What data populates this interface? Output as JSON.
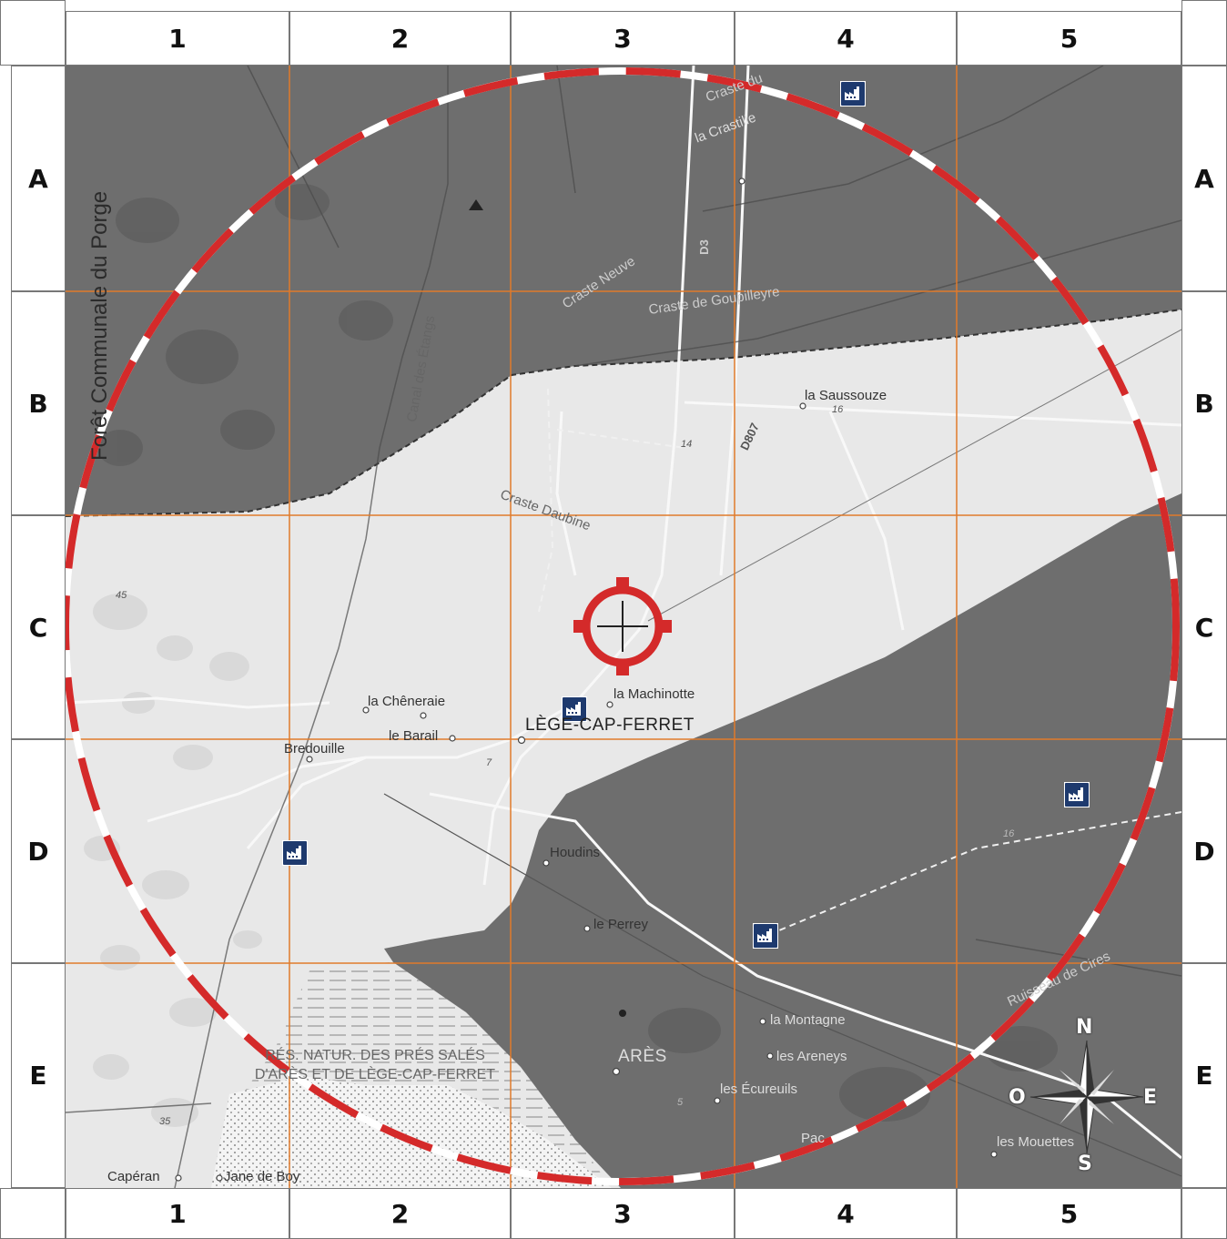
{
  "grid": {
    "columns": [
      "1",
      "2",
      "3",
      "4",
      "5"
    ],
    "rows": [
      "A",
      "B",
      "C",
      "D",
      "E"
    ]
  },
  "places": {
    "lege_cap_ferret": "LÈGE-CAP-FERRET",
    "la_machinotte": "la Machinotte",
    "la_cheneraie": "la Chêneraie",
    "le_barail": "le Barail",
    "bredouille": "Bredouille",
    "houdins": "Houdins",
    "le_perrey": "le Perrey",
    "ares": "ARÈS",
    "la_montagne": "la Montagne",
    "les_areneys": "les Areneys",
    "les_ecureuils": "les Écureuils",
    "les_mouettes": "les Mouettes",
    "pac": "Pac",
    "la_saussouze": "la Saussouze",
    "la_crastille": "la Crastille",
    "craste_du": "Craste du",
    "craste_neuve": "Craste Neuve",
    "craste_de_goupilleyre": "Craste de Goupilleyre",
    "craste_daubine": "Craste Daubine",
    "canal_des_etangs": "Canal des Étangs",
    "foret_communale": "Forêt Communale du Porge",
    "road_d3": "D3",
    "road_d807": "D807",
    "ruisseau_de_cires": "Ruisseau de Cires",
    "caperan": "Capéran",
    "jane_de_boy": "Jane de Boy",
    "reserve_line1": "RÉS. NATUR. DES PRÉS SALÉS",
    "reserve_line2": "D'ARÈS ET DE LÈGE-CAP-FERRET"
  },
  "spot_heights": {
    "h45": "45",
    "h35": "35",
    "h14": "14",
    "h16a": "16",
    "h16b": "16",
    "h7": "7",
    "h5": "5"
  },
  "compass": {
    "n": "N",
    "s": "S",
    "e": "E",
    "w": "O"
  },
  "colors": {
    "grid_line": "#e07a2a",
    "danger_circle": "#d42a2a",
    "target": "#d42a2a",
    "factory": "#1e3a6e",
    "shaded_zone": "#6b6b6b",
    "light_zone": "#e8e8e8"
  },
  "icons": [
    "factory-icon",
    "target-icon",
    "compass-rose-icon",
    "summit-icon"
  ]
}
